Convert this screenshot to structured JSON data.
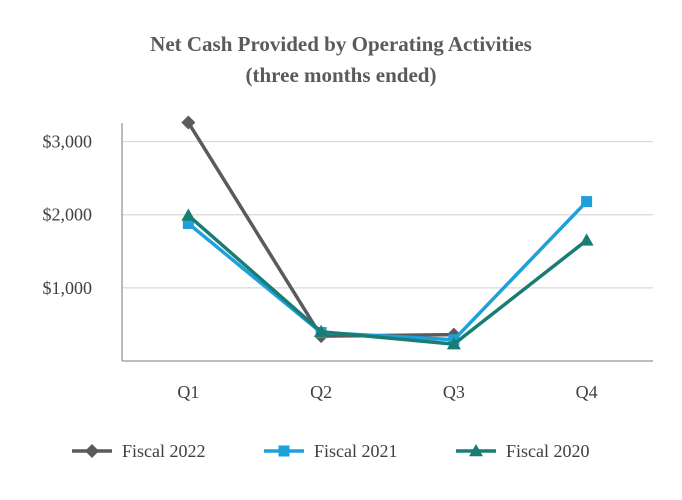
{
  "chart_data": {
    "type": "line",
    "title": "Net Cash Provided by Operating Activities",
    "subtitle": "(three months ended)",
    "categories": [
      "Q1",
      "Q2",
      "Q3",
      "Q4"
    ],
    "ylim": [
      0,
      3500
    ],
    "yticks": [
      1000,
      2000,
      3000
    ],
    "ytick_labels": [
      "$1,000",
      "$2,000",
      "$3,000"
    ],
    "grid": true,
    "legend_position": "bottom",
    "series": [
      {
        "name": "Fiscal 2022",
        "marker": "diamond",
        "color": "#5a5a5f",
        "values": [
          3260,
          340,
          360,
          null
        ]
      },
      {
        "name": "Fiscal 2021",
        "marker": "square",
        "color": "#1ea0dc",
        "values": [
          1880,
          390,
          290,
          2180
        ]
      },
      {
        "name": "Fiscal 2020",
        "marker": "triangle",
        "color": "#1a7d73",
        "values": [
          1990,
          400,
          230,
          1650
        ]
      }
    ]
  }
}
